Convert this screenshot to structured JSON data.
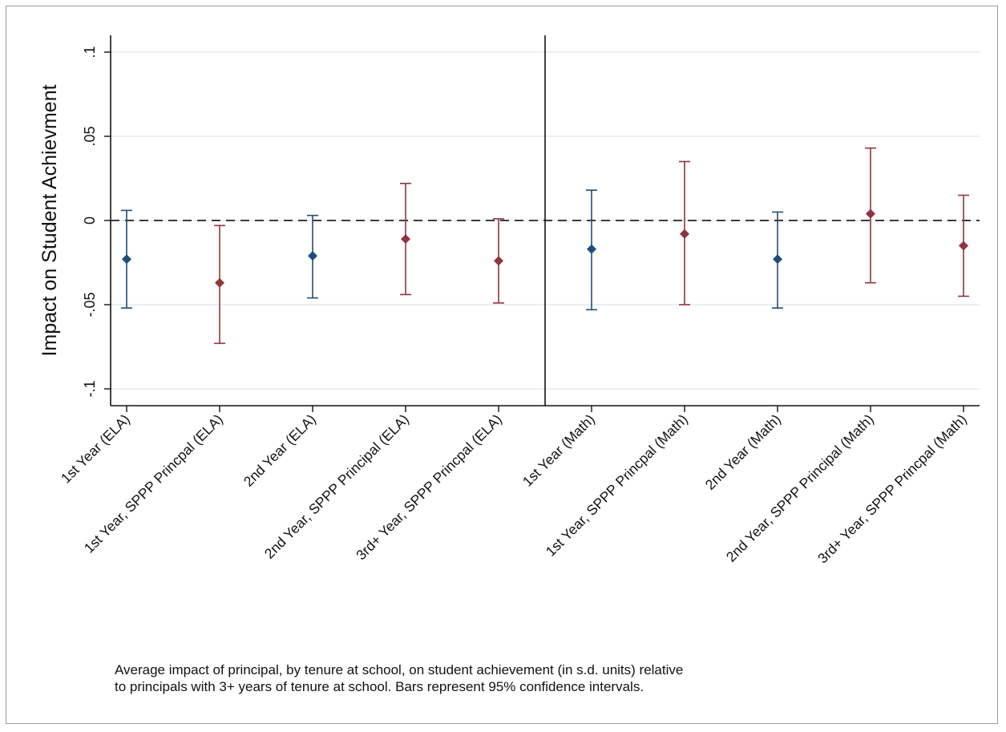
{
  "chart_data": {
    "type": "scatter",
    "title": "",
    "xlabel": "",
    "ylabel": "Impact on Student Achievment",
    "ylim": [
      -0.11,
      0.11
    ],
    "yticks": [
      {
        "value": 0.1,
        "label": ".1"
      },
      {
        "value": 0.05,
        "label": ".05"
      },
      {
        "value": 0,
        "label": "0"
      },
      {
        "value": -0.05,
        "label": "-.05"
      },
      {
        "value": -0.1,
        "label": "-.1"
      }
    ],
    "grid": true,
    "reference_line": 0,
    "panel_divider_after_category": 5,
    "point_style": "diamond markers with 95% confidence interval error bars",
    "colors": {
      "first_year": "#1f4e79",
      "sppp": "#90353b"
    },
    "categories": [
      "1st Year (ELA)",
      "1st Year, SPPP Princpal (ELA)",
      "2nd Year (ELA)",
      "2nd Year, SPPP Principal (ELA)",
      "3rd+ Year, SPPP Princpal (ELA)",
      "1st Year (Math)",
      "1st Year, SPPP Princpal (Math)",
      "2nd Year (Math)",
      "2nd Year, SPPP Principal (Math)",
      "3rd+ Year, SPPP Princpal (Math)"
    ],
    "points": [
      {
        "category": "1st Year (ELA)",
        "estimate": -0.023,
        "ci_low": -0.052,
        "ci_high": 0.006,
        "group": "first_year"
      },
      {
        "category": "1st Year, SPPP Princpal (ELA)",
        "estimate": -0.037,
        "ci_low": -0.073,
        "ci_high": -0.003,
        "group": "sppp"
      },
      {
        "category": "2nd Year (ELA)",
        "estimate": -0.021,
        "ci_low": -0.046,
        "ci_high": 0.003,
        "group": "first_year"
      },
      {
        "category": "2nd Year, SPPP Principal (ELA)",
        "estimate": -0.011,
        "ci_low": -0.044,
        "ci_high": 0.022,
        "group": "sppp"
      },
      {
        "category": "3rd+ Year, SPPP Princpal (ELA)",
        "estimate": -0.024,
        "ci_low": -0.049,
        "ci_high": 0.001,
        "group": "sppp"
      },
      {
        "category": "1st Year (Math)",
        "estimate": -0.017,
        "ci_low": -0.053,
        "ci_high": 0.018,
        "group": "first_year"
      },
      {
        "category": "1st Year, SPPP Princpal (Math)",
        "estimate": -0.008,
        "ci_low": -0.05,
        "ci_high": 0.035,
        "group": "sppp"
      },
      {
        "category": "2nd Year (Math)",
        "estimate": -0.023,
        "ci_low": -0.052,
        "ci_high": 0.005,
        "group": "first_year"
      },
      {
        "category": "2nd Year, SPPP Principal (Math)",
        "estimate": 0.004,
        "ci_low": -0.037,
        "ci_high": 0.043,
        "group": "sppp"
      },
      {
        "category": "3rd+ Year, SPPP Princpal (Math)",
        "estimate": -0.015,
        "ci_low": -0.045,
        "ci_high": 0.015,
        "group": "sppp"
      }
    ]
  },
  "caption": {
    "line1": "Average impact of principal, by tenure at school, on student achievement (in s.d. units) relative",
    "line2": "to principals with 3+ years of tenure at school. Bars represent 95% confidence intervals."
  }
}
